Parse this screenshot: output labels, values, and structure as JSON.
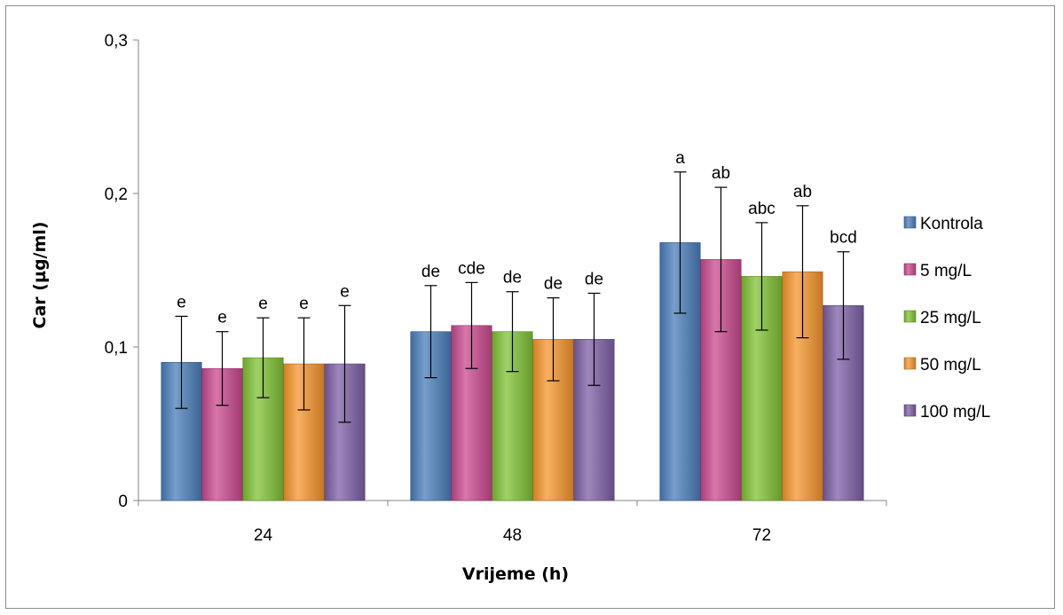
{
  "chart_data": {
    "type": "bar",
    "categories": [
      "24",
      "48",
      "72"
    ],
    "xlabel": "Vrijeme (h)",
    "ylabel": "Car (µg/ml)",
    "ylim": [
      0,
      0.3
    ],
    "yticks": [
      0,
      0.1,
      0.2,
      0.3
    ],
    "ytick_labels": [
      "0",
      "0,1",
      "0,2",
      "0,3"
    ],
    "grid": false,
    "legend_position": "right",
    "series": [
      {
        "name": "Kontrola",
        "color": "#4a7ebb",
        "values": [
          0.09,
          0.11,
          0.168
        ],
        "errors": [
          0.03,
          0.03,
          0.046
        ],
        "labels": [
          "e",
          "de",
          "a"
        ]
      },
      {
        "name": "5 mg/L",
        "color": "#c9498f",
        "values": [
          0.086,
          0.114,
          0.157
        ],
        "errors": [
          0.024,
          0.028,
          0.047
        ],
        "labels": [
          "e",
          "cde",
          "ab"
        ]
      },
      {
        "name": "25 mg/L",
        "color": "#7fc234",
        "values": [
          0.093,
          0.11,
          0.146
        ],
        "errors": [
          0.026,
          0.026,
          0.035
        ],
        "labels": [
          "e",
          "de",
          "abc"
        ]
      },
      {
        "name": "50 mg/L",
        "color": "#f6952c",
        "values": [
          0.089,
          0.105,
          0.149
        ],
        "errors": [
          0.03,
          0.027,
          0.043
        ],
        "labels": [
          "e",
          "de",
          "ab"
        ]
      },
      {
        "name": "100 mg/L",
        "color": "#7d5fa6",
        "values": [
          0.089,
          0.105,
          0.127
        ],
        "errors": [
          0.038,
          0.03,
          0.035
        ],
        "labels": [
          "e",
          "de",
          "bcd"
        ]
      }
    ]
  }
}
